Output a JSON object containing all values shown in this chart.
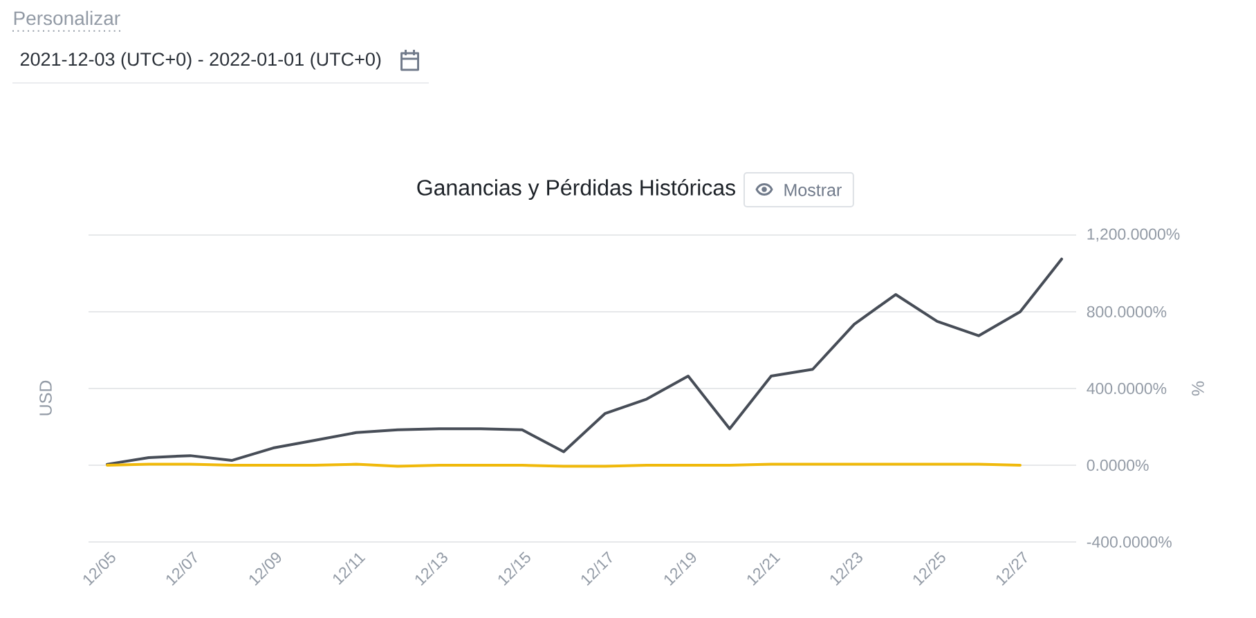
{
  "chart_data": {
    "type": "line",
    "title": "Ganancias y Pérdidas Históricas",
    "subtitle": "2021-12-03 (UTC+0) - 2022-01-01 (UTC+0)",
    "annotations": [
      "Personalizar",
      "Mostrar"
    ],
    "ylabel": "USD",
    "y2label": "%",
    "categories": [
      "12/05",
      null,
      "12/07",
      null,
      "12/09",
      null,
      "12/11",
      null,
      "12/13",
      null,
      "12/15",
      null,
      "12/17",
      null,
      "12/19",
      null,
      "12/21",
      null,
      "12/23",
      null,
      "12/25",
      null,
      "12/27",
      null
    ],
    "series": [
      {
        "color": "#474d57",
        "axis": "y2",
        "values": [
          5,
          40,
          50,
          25,
          90,
          130,
          170,
          185,
          190,
          190,
          185,
          70,
          270,
          345,
          465,
          190,
          465,
          500,
          735,
          890,
          750,
          675,
          800,
          1075
        ]
      },
      {
        "color": "#f0b90b",
        "axis": "y2",
        "values": [
          0,
          5,
          5,
          0,
          0,
          0,
          5,
          -5,
          0,
          0,
          0,
          -5,
          -5,
          0,
          0,
          0,
          5,
          5,
          5,
          5,
          5,
          5,
          0,
          null
        ]
      }
    ],
    "y2lim": [
      -400,
      1200
    ],
    "y2ticks": [
      {
        "value": -400,
        "label": "-400.0000%"
      },
      {
        "value": 0,
        "label": "0.0000%"
      },
      {
        "value": 400,
        "label": "400.0000%"
      },
      {
        "value": 800,
        "label": "800.0000%"
      },
      {
        "value": 1200,
        "label": "1,200.0000%"
      }
    ],
    "grid": "y",
    "marker": "none",
    "line_style": "solid"
  }
}
